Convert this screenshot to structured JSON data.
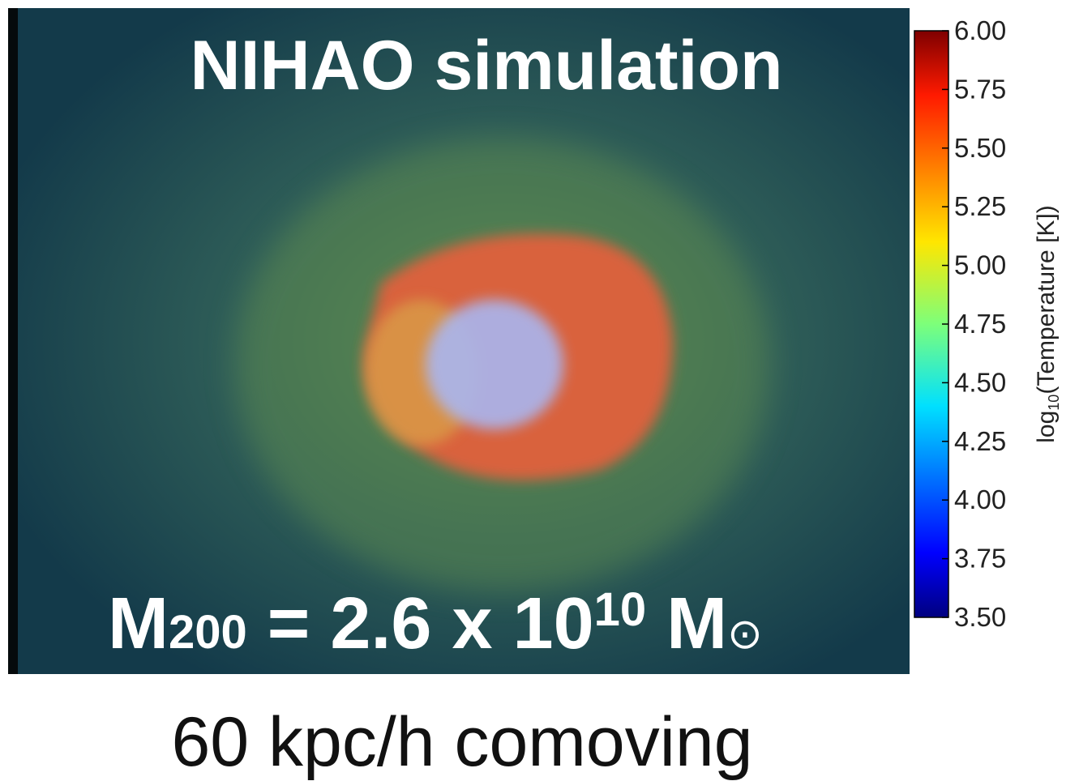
{
  "title": "NIHAO simulation",
  "mass_label": {
    "symbol": "M",
    "subscript": "200",
    "equals": " = 2.6 x 10",
    "exponent": "10",
    "unit": " M",
    "unit_subscript": "⊙"
  },
  "caption": "60 kpc/h comoving",
  "colorbar": {
    "label": {
      "prefix": "log",
      "subscript": "10",
      "text": "(Temperature [K])"
    },
    "ylim": [
      3.5,
      6.0
    ],
    "yticks": [
      {
        "value": 3.5,
        "label": "3.50"
      },
      {
        "value": 3.75,
        "label": "3.75"
      },
      {
        "value": 4.0,
        "label": "4.00"
      },
      {
        "value": 4.25,
        "label": "4.25"
      },
      {
        "value": 4.5,
        "label": "4.50"
      },
      {
        "value": 4.75,
        "label": "4.75"
      },
      {
        "value": 5.0,
        "label": "5.00"
      },
      {
        "value": 5.25,
        "label": "5.25"
      },
      {
        "value": 5.5,
        "label": "5.50"
      },
      {
        "value": 5.75,
        "label": "5.75"
      },
      {
        "value": 6.0,
        "label": "6.00"
      }
    ]
  }
}
